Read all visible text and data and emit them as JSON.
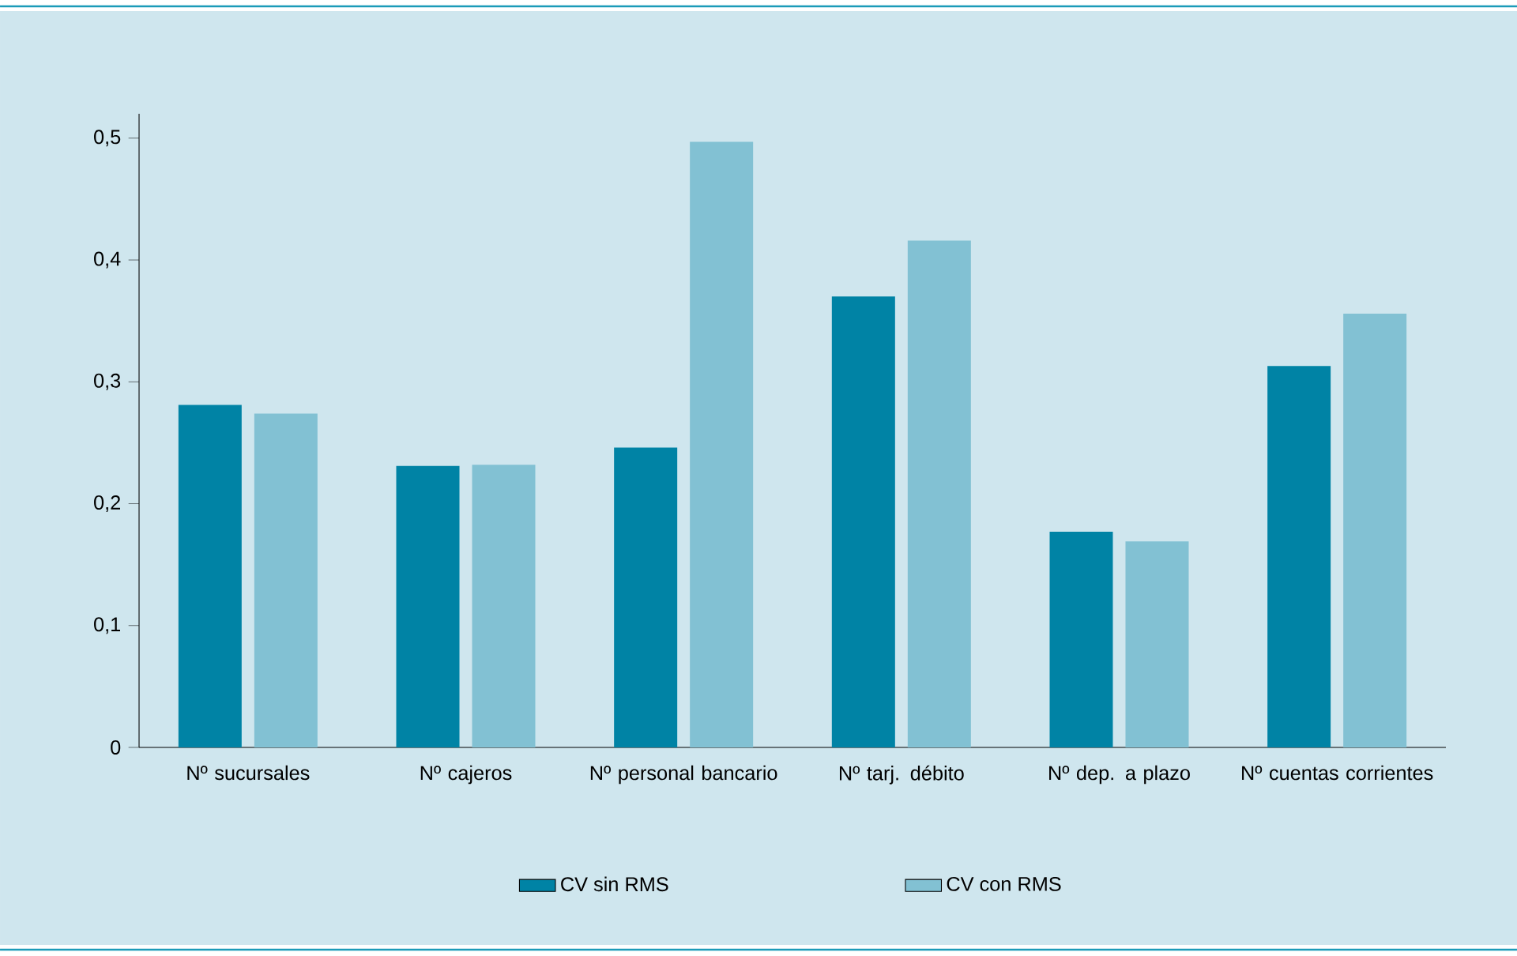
{
  "chart_data": {
    "type": "bar",
    "categories": [
      "Nº sucursales",
      "Nº cajeros",
      "Nº personal bancario",
      "Nº tarj. débito",
      "Nº dep. a plazo",
      "Nº cuentas corrientes"
    ],
    "series": [
      {
        "name": "CV sin RMS",
        "color": "#0083a5",
        "values": [
          0.281,
          0.231,
          0.246,
          0.37,
          0.177,
          0.313
        ]
      },
      {
        "name": "CV con RMS",
        "color": "#82c1d3",
        "values": [
          0.274,
          0.232,
          0.497,
          0.416,
          0.169,
          0.356
        ]
      }
    ],
    "ylim": [
      0,
      0.52
    ],
    "yticks": [
      0,
      {
        "value": 0.1,
        "label": "0,1"
      },
      {
        "value": 0.2,
        "label": "0,2"
      },
      {
        "value": 0.3,
        "label": "0,3"
      },
      {
        "value": 0.4,
        "label": "0,4"
      },
      {
        "value": 0.5,
        "label": "0,5"
      }
    ],
    "legend": "bottom"
  }
}
